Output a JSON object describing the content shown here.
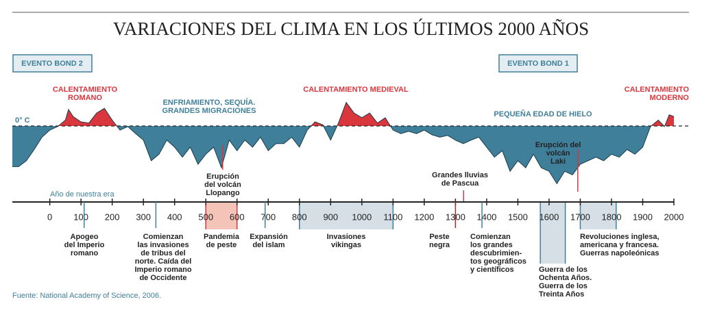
{
  "chart_data": {
    "type": "area",
    "title": "VARIACIONES DEL CLIMA EN LOS ÚLTIMOS 2000 AÑOS",
    "zero_label": "0° C",
    "x_axis_label": "Año de nuestra era",
    "source": "Fuente: National Academy of Science, 2006.",
    "warm_color": "#d9363e",
    "cold_color": "#3f7f99",
    "xlim": [
      -120,
      2000
    ],
    "ylim": [
      -1,
      0.4
    ],
    "xticks": [
      0,
      100,
      200,
      300,
      400,
      500,
      600,
      700,
      800,
      900,
      1000,
      1100,
      1200,
      1300,
      1400,
      1500,
      1600,
      1700,
      1800,
      1900,
      2000
    ],
    "x": [
      -120,
      -100,
      -75,
      -50,
      -25,
      0,
      25,
      50,
      60,
      75,
      100,
      125,
      150,
      175,
      200,
      225,
      250,
      275,
      300,
      325,
      350,
      375,
      400,
      425,
      450,
      475,
      500,
      525,
      550,
      575,
      600,
      625,
      650,
      675,
      700,
      725,
      750,
      775,
      800,
      825,
      850,
      875,
      900,
      925,
      950,
      975,
      1000,
      1025,
      1050,
      1075,
      1100,
      1125,
      1150,
      1175,
      1200,
      1225,
      1250,
      1275,
      1300,
      1325,
      1350,
      1375,
      1400,
      1425,
      1450,
      1475,
      1500,
      1525,
      1550,
      1575,
      1600,
      1625,
      1650,
      1675,
      1700,
      1725,
      1750,
      1775,
      1800,
      1825,
      1850,
      1875,
      1900,
      1925,
      1950,
      1970,
      1985,
      2000
    ],
    "values": [
      -0.69,
      -0.69,
      -0.59,
      -0.4,
      -0.19,
      -0.07,
      -0.01,
      0.1,
      0.28,
      0.16,
      0.07,
      0.05,
      0.22,
      0.3,
      0.1,
      -0.07,
      -0.01,
      -0.13,
      -0.24,
      -0.59,
      -0.48,
      -0.24,
      -0.36,
      -0.53,
      -0.36,
      -0.65,
      -0.48,
      -0.36,
      -0.71,
      -0.24,
      -0.42,
      -0.24,
      -0.36,
      -0.19,
      -0.42,
      -0.3,
      -0.3,
      -0.19,
      -0.36,
      -0.07,
      0.07,
      0.02,
      -0.24,
      0.05,
      0.4,
      0.22,
      0.14,
      0.22,
      0.05,
      0.14,
      -0.07,
      -0.13,
      -0.09,
      -0.13,
      -0.07,
      -0.15,
      -0.19,
      -0.16,
      -0.24,
      -0.3,
      -0.24,
      -0.19,
      -0.36,
      -0.53,
      -0.42,
      -0.77,
      -0.59,
      -0.71,
      -0.48,
      -0.71,
      -0.77,
      -0.98,
      -0.77,
      -0.83,
      -0.65,
      -0.59,
      -0.53,
      -0.59,
      -0.48,
      -0.53,
      -0.4,
      -0.48,
      -0.36,
      -0.01,
      0.1,
      -0.01,
      0.19,
      0.16
    ],
    "bond_events": [
      "EVENTO BOND 2",
      "EVENTO BOND 1"
    ],
    "periods": [
      {
        "lines": [
          "CALENTAMIENTO",
          "ROMANO"
        ],
        "kind": "warm"
      },
      {
        "lines": [
          "ENFRIAMIENTO, SEQUÍA.",
          "GRANDES MIGRACIONES"
        ],
        "kind": "cold"
      },
      {
        "lines": [
          "CALENTAMIENTO MEDIEVAL"
        ],
        "kind": "warm"
      },
      {
        "lines": [
          "PEQUEÑA EDAD DE HIELO"
        ],
        "kind": "cold"
      },
      {
        "lines": [
          "CALENTAMIENTO",
          "MODERNO"
        ],
        "kind": "warm"
      }
    ],
    "annotations": [
      {
        "lines": [
          "Erupción",
          "del volcán",
          "Llopango"
        ],
        "year": 554
      },
      {
        "lines": [
          "Grandes lluvias",
          "de Pascua"
        ],
        "year": 1326
      },
      {
        "lines": [
          "Erupción del",
          "volcán",
          "Laki"
        ],
        "year": 1692
      }
    ],
    "events": [
      {
        "lines": [
          "Apogeo",
          "del Imperio",
          "romano"
        ],
        "year": 110
      },
      {
        "lines": [
          "Comienzan",
          "las invasiones",
          "de tribus del",
          "norte. Caída del",
          "Imperio romano",
          "de Occidente"
        ],
        "year": 340
      },
      {
        "lines": [
          "Pandemia",
          "de peste"
        ],
        "span": [
          500,
          600
        ]
      },
      {
        "lines": [
          "Expansión",
          "del islam"
        ],
        "year": 690
      },
      {
        "lines": [
          "Invasiones",
          "vikingas"
        ],
        "span": [
          800,
          1100
        ]
      },
      {
        "lines": [
          "Peste",
          "negra"
        ],
        "year": 1300
      },
      {
        "lines": [
          "Comienzan",
          "los grandes",
          "descubrimien-",
          "tos geográficos",
          "y científicos"
        ],
        "year": 1385
      },
      {
        "lines": [
          "Guerra de los",
          "Ochenta Años.",
          "Guerra de los",
          "Treinta Años"
        ],
        "span": [
          1572,
          1652
        ]
      },
      {
        "lines": [
          "Revoluciones inglesa,",
          "americana y francesa.",
          "Guerras napoleónicas"
        ],
        "span": [
          1700,
          1815
        ]
      }
    ]
  }
}
